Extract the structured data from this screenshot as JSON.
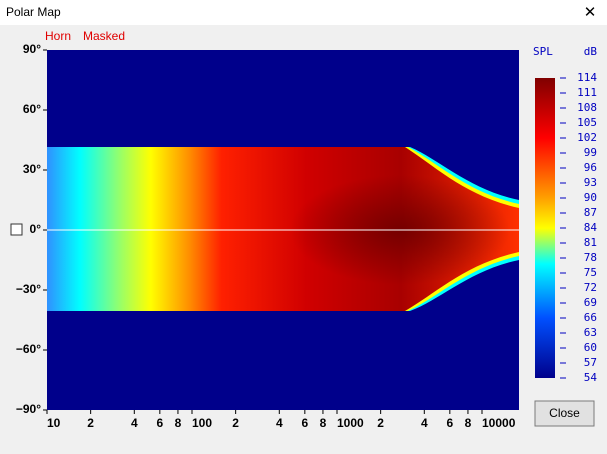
{
  "window": {
    "title": "Polar Map",
    "close_glyph": "✕"
  },
  "legend": {
    "items": [
      "Horn",
      "Masked"
    ]
  },
  "plot": {
    "y_labels": [
      "90°",
      "60°",
      "30°",
      "0°",
      "−30°",
      "−60°",
      "−90°"
    ],
    "x_labels": [
      "10",
      "2",
      "4",
      "6",
      "8",
      "100",
      "2",
      "4",
      "6",
      "8",
      "1000",
      "2",
      "4",
      "6",
      "8",
      "10000"
    ]
  },
  "colorbar": {
    "header": [
      "SPL",
      "dB"
    ],
    "labels": [
      "114",
      "111",
      "108",
      "105",
      "102",
      "99",
      "96",
      "93",
      "90",
      "87",
      "84",
      "81",
      "78",
      "75",
      "72",
      "69",
      "66",
      "63",
      "60",
      "57",
      "54"
    ]
  },
  "buttons": {
    "close": "Close"
  }
}
